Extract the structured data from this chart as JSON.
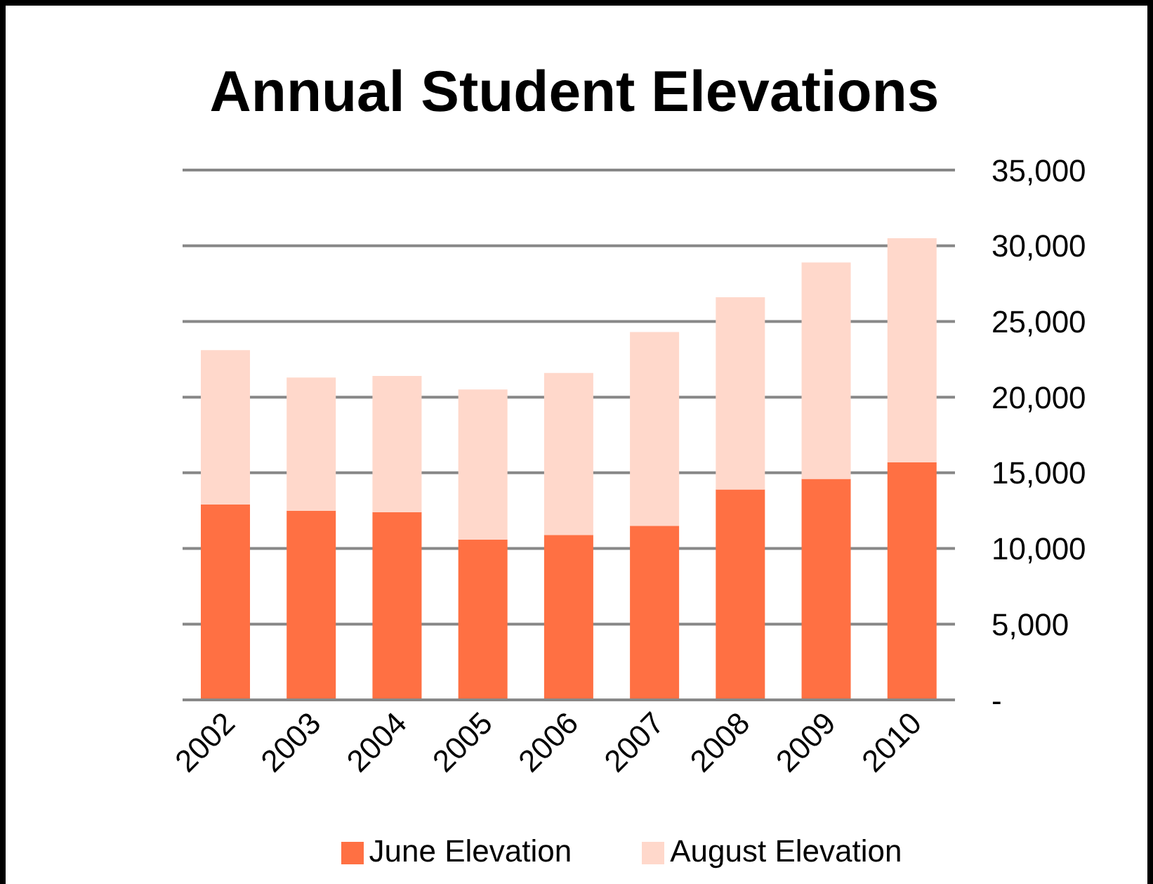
{
  "chart_data": {
    "type": "bar",
    "title": "Annual Student Elevations",
    "categories": [
      "2002",
      "2003",
      "2004",
      "2005",
      "2006",
      "2007",
      "2008",
      "2009",
      "2010"
    ],
    "series": [
      {
        "name": "June Elevation",
        "color": "#ff7043",
        "values": [
          12900,
          12500,
          12400,
          10600,
          10900,
          11500,
          13900,
          14600,
          15700
        ]
      },
      {
        "name": "August Elevation",
        "color": "#ffd8cb",
        "values": [
          10200,
          8800,
          9000,
          9900,
          10700,
          12800,
          12700,
          14300,
          14800
        ]
      }
    ],
    "stacked": true,
    "ylim": [
      0,
      35000
    ],
    "yticks": [
      {
        "value": 0,
        "label": "-"
      },
      {
        "value": 5000,
        "label": "5,000"
      },
      {
        "value": 10000,
        "label": "10,000"
      },
      {
        "value": 15000,
        "label": "15,000"
      },
      {
        "value": 20000,
        "label": "20,000"
      },
      {
        "value": 25000,
        "label": "25,000"
      },
      {
        "value": 30000,
        "label": "30,000"
      },
      {
        "value": 35000,
        "label": "35,000"
      }
    ],
    "grid": "y",
    "legend": "bottom"
  }
}
